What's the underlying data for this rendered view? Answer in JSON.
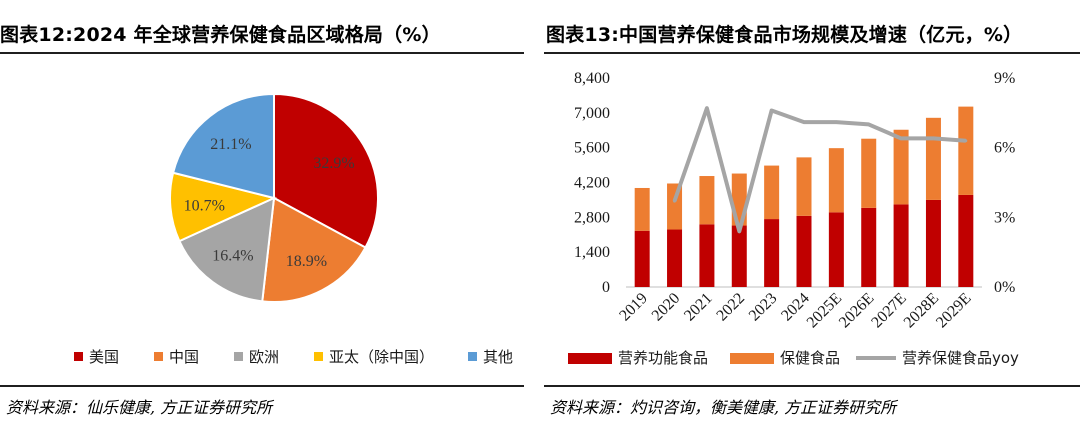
{
  "chart_data": [
    {
      "type": "pie",
      "title": "图表12:2024 年全球营养保健食品区域格局（%）",
      "categories": [
        "美国",
        "中国",
        "欧洲",
        "亚太（除中国）",
        "其他"
      ],
      "values": [
        32.9,
        18.9,
        16.4,
        10.7,
        21.1
      ],
      "labels": [
        "32.9%",
        "18.9%",
        "16.4%",
        "10.7%",
        "21.1%"
      ],
      "colors": [
        "#C00000",
        "#ED7D31",
        "#A5A5A5",
        "#FFC000",
        "#5B9BD5"
      ],
      "legend": "bottom",
      "source": "资料来源：仙乐健康, 方正证券研究所"
    },
    {
      "type": "bar",
      "title": "图表13:中国营养保健食品市场规模及增速（亿元，%）",
      "categories": [
        "2019",
        "2020",
        "2021",
        "2022",
        "2023",
        "2024",
        "2025E",
        "2026E",
        "2027E",
        "2028E",
        "2029E"
      ],
      "series": [
        {
          "name": "营养功能食品",
          "kind": "stacked-bar",
          "color": "#C00000",
          "values": [
            2260,
            2310,
            2520,
            2470,
            2730,
            2860,
            3000,
            3180,
            3320,
            3500,
            3700
          ]
        },
        {
          "name": "保健食品",
          "kind": "stacked-bar",
          "color": "#ED7D31",
          "values": [
            1720,
            1850,
            1940,
            2090,
            2150,
            2350,
            2580,
            2780,
            3000,
            3300,
            3550
          ]
        },
        {
          "name": "营养保健食品yoy",
          "kind": "line",
          "axis": "right",
          "color": "#A5A5A5",
          "values": [
            null,
            3.7,
            7.7,
            2.4,
            7.6,
            7.1,
            7.1,
            7.0,
            6.4,
            6.4,
            6.3
          ]
        }
      ],
      "ylim": [
        0,
        8400
      ],
      "yticks": [
        0,
        1400,
        2800,
        4200,
        5600,
        7000,
        8400
      ],
      "ytick_labels": [
        "0",
        "1,400",
        "2,800",
        "4,200",
        "5,600",
        "7,000",
        "8,400"
      ],
      "y2lim": [
        0,
        9
      ],
      "y2ticks": [
        0,
        3,
        6,
        9
      ],
      "y2tick_labels": [
        "0%",
        "3%",
        "6%",
        "9%"
      ],
      "legend": "bottom",
      "source": "资料来源：灼识咨询，衡美健康, 方正证券研究所"
    }
  ]
}
